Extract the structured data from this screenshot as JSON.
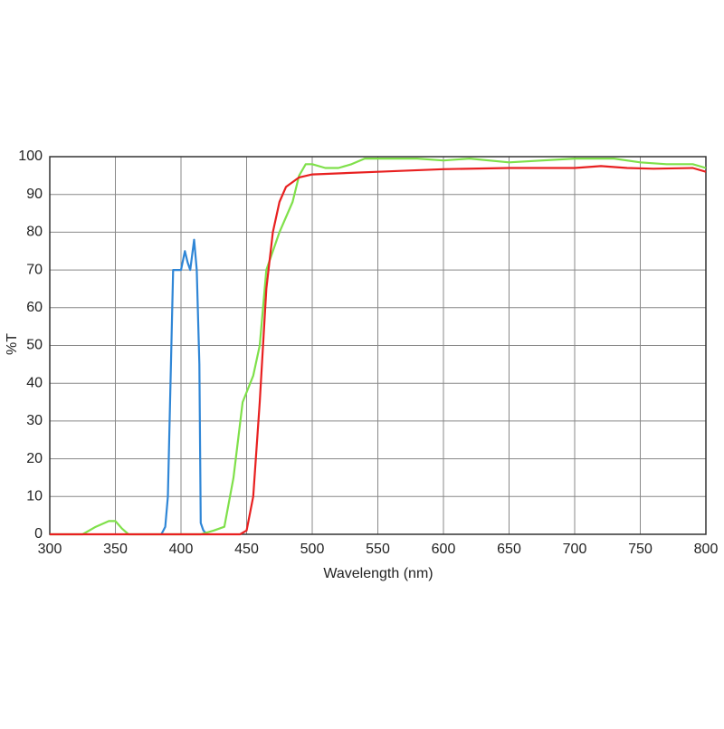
{
  "chart_data": {
    "type": "line",
    "xlabel": "Wavelength (nm)",
    "ylabel": "%T",
    "xlim": [
      300,
      800
    ],
    "xticks": [
      300,
      350,
      400,
      450,
      500,
      550,
      600,
      650,
      700,
      750,
      800
    ],
    "ylim": [
      0,
      100
    ],
    "yticks": [
      0,
      10,
      20,
      30,
      40,
      50,
      60,
      70,
      80,
      90,
      100
    ],
    "grid": true,
    "series": [
      {
        "color": "#2f86d6",
        "x": [
          385,
          388,
          390,
          392,
          394,
          396,
          398,
          400,
          403,
          405,
          407,
          410,
          412,
          414,
          415,
          417,
          420
        ],
        "values": [
          0,
          2,
          10,
          40,
          70,
          70,
          70,
          70,
          75,
          72,
          70,
          78,
          70,
          45,
          3,
          1,
          0
        ]
      },
      {
        "color": "#7fe04a",
        "x": [
          300,
          325,
          335,
          345,
          350,
          355,
          360,
          415,
          425,
          433,
          440,
          447,
          455,
          460,
          465,
          475,
          485,
          490,
          495,
          500,
          510,
          520,
          530,
          540,
          560,
          580,
          600,
          620,
          650,
          700,
          730,
          750,
          770,
          790,
          800
        ],
        "values": [
          0,
          0,
          2,
          3.5,
          3.5,
          1.5,
          0,
          0,
          1,
          2,
          15,
          35,
          42,
          50,
          70,
          80,
          88,
          95,
          98,
          98,
          97,
          97,
          98,
          99.5,
          99.5,
          99.5,
          99,
          99.5,
          98.5,
          99.5,
          99.5,
          98.5,
          98,
          98,
          97
        ]
      },
      {
        "color": "#e82020",
        "x": [
          300,
          445,
          450,
          455,
          460,
          465,
          470,
          475,
          480,
          490,
          500,
          550,
          600,
          650,
          700,
          720,
          740,
          760,
          790,
          800
        ],
        "values": [
          0,
          0,
          1,
          10,
          35,
          65,
          80,
          88,
          92,
          94.5,
          95.3,
          96,
          96.7,
          97,
          97,
          97.5,
          97,
          96.8,
          97,
          96
        ]
      }
    ]
  }
}
